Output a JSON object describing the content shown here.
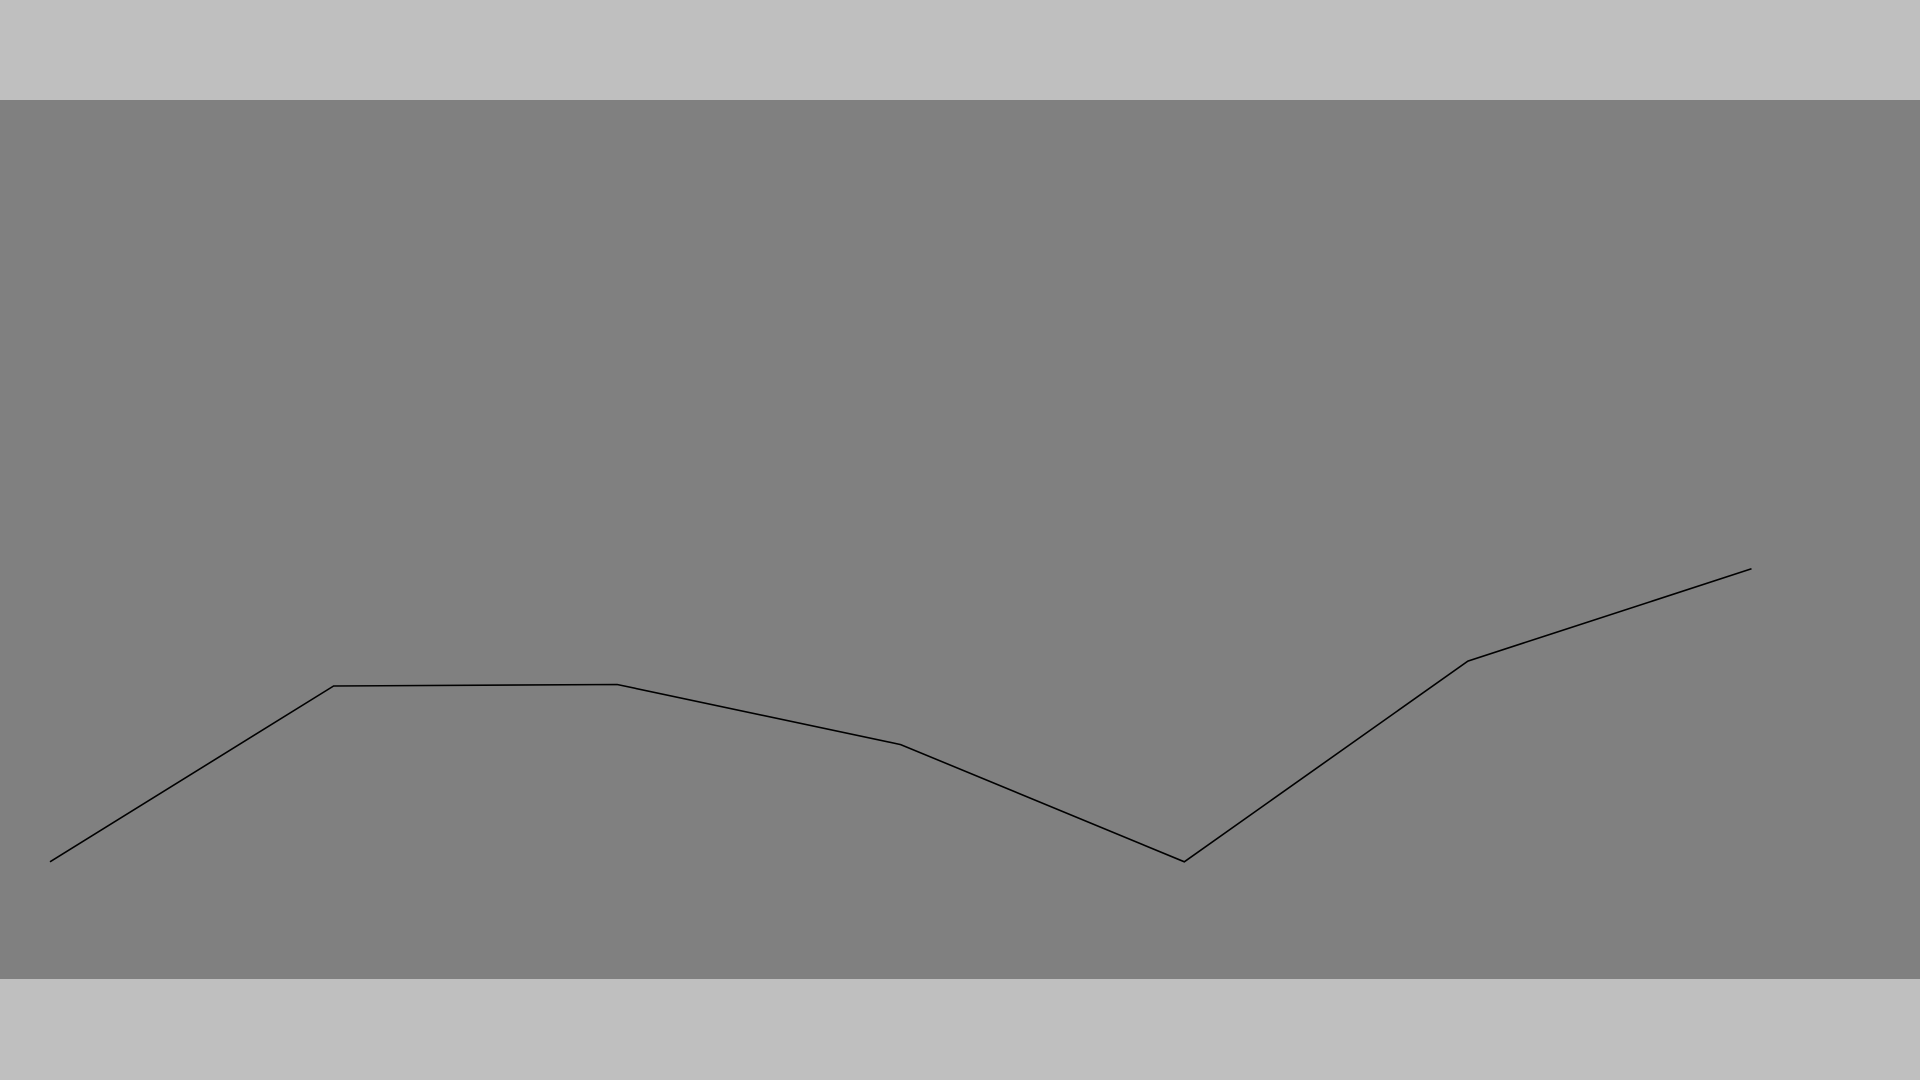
{
  "colors": {
    "page_background": "#bfbfbf",
    "plot_background": "#808080",
    "line": "#000000"
  },
  "chart_data": {
    "type": "line",
    "title": "",
    "xlabel": "",
    "ylabel": "",
    "x": [
      0,
      1,
      2,
      3,
      4,
      5,
      6
    ],
    "series": [
      {
        "values": [
          0.0,
          0.6,
          0.605,
          0.4,
          0.0,
          0.685,
          1.0
        ]
      }
    ],
    "xlim": [
      0,
      6.7
    ],
    "ylim": [
      -0.4,
      2.6
    ],
    "grid": false,
    "legend": "none",
    "axes_visible": false
  }
}
